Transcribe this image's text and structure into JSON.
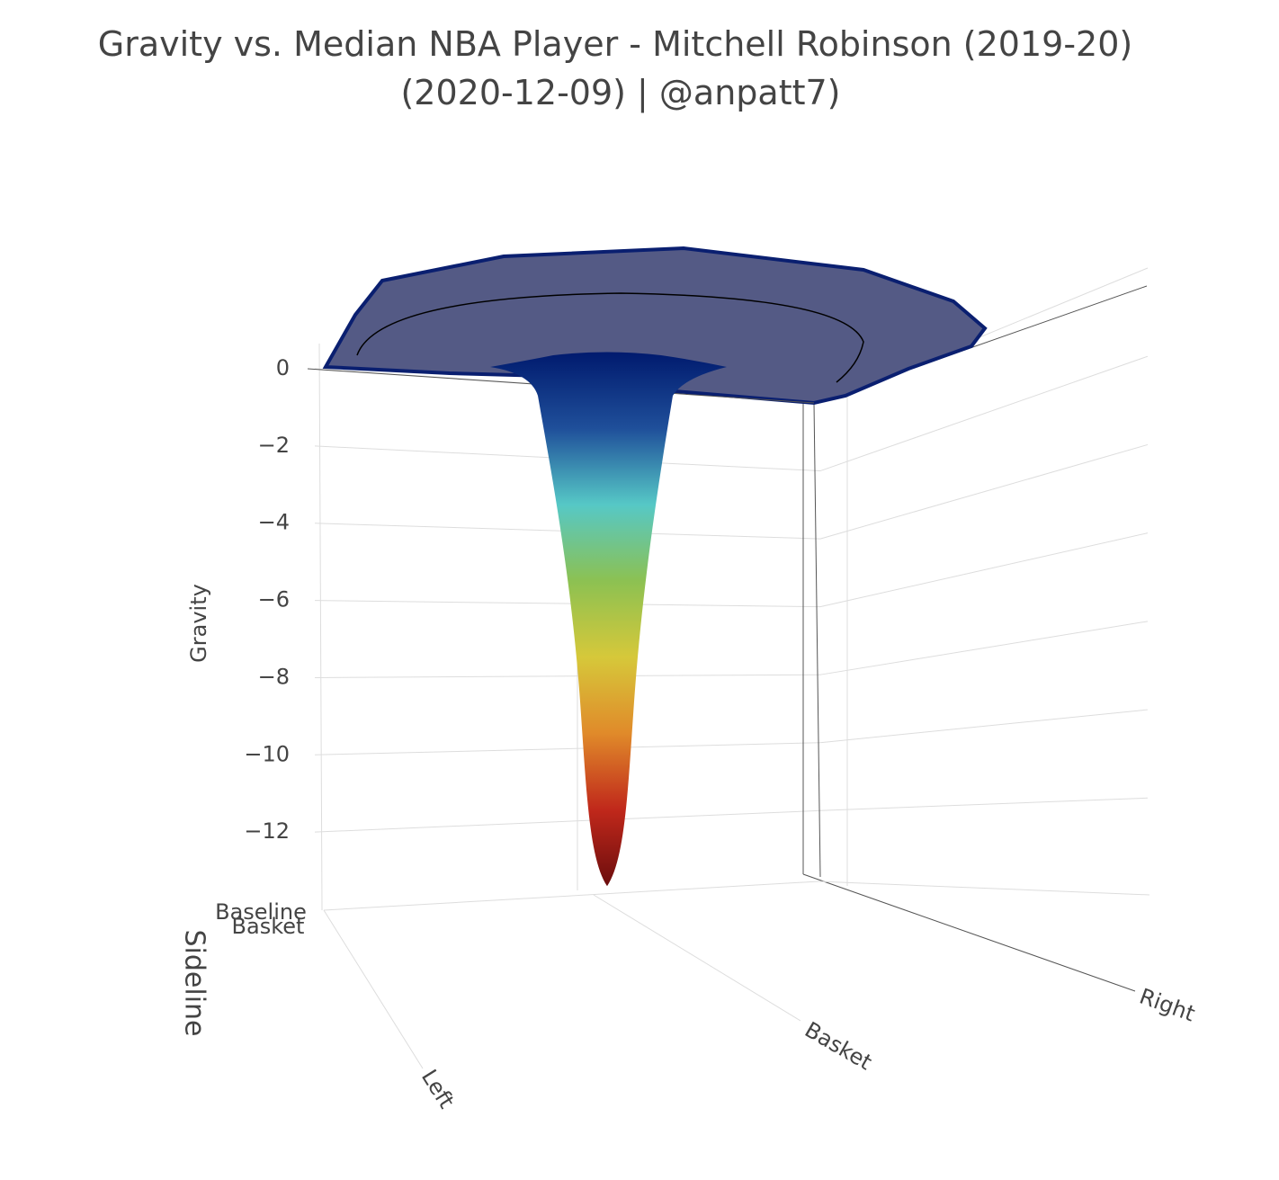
{
  "chart_data": {
    "type": "surface",
    "title": [
      "Gravity vs. Median NBA Player - Mitchell Robinson (2019-20)",
      "(2020-12-09) | @anpatt7)"
    ],
    "z_title": "Gravity",
    "zlim": [
      -14,
      0.7
    ],
    "zticks": [
      {
        "value": 0,
        "label": "0"
      },
      {
        "value": -2,
        "label": "−2"
      },
      {
        "value": -4,
        "label": "−4"
      },
      {
        "value": -6,
        "label": "−6"
      },
      {
        "value": -8,
        "label": "−8"
      },
      {
        "value": -10,
        "label": "−10"
      },
      {
        "value": -12,
        "label": "−12"
      }
    ],
    "x_ticks": [
      "Left",
      "Basket",
      "Right"
    ],
    "y_title": "Sideline",
    "y_ticks": [
      "Baseline",
      "Basket"
    ],
    "min_value": -13.4,
    "plateau_color": "#545a85",
    "colorscale": [
      "#001a6e",
      "#1f4f9a",
      "#56c8c6",
      "#8cc152",
      "#d6c83a",
      "#e08a2a",
      "#c0281b",
      "#6b0d0d"
    ],
    "grid": true
  }
}
